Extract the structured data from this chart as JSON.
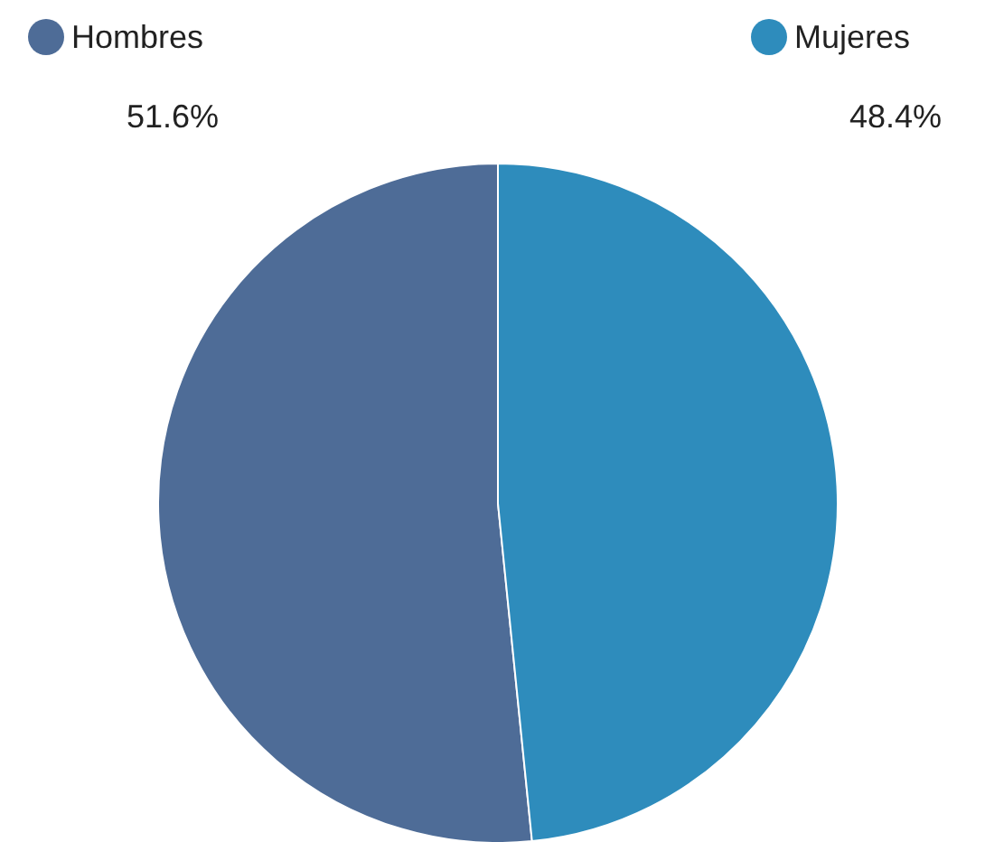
{
  "chart_data": {
    "type": "pie",
    "categories": [
      "Hombres",
      "Mujeres"
    ],
    "values": [
      51.6,
      48.4
    ],
    "colors": [
      "#4e6c97",
      "#2e8cbc"
    ],
    "legend": "top",
    "value_labels": [
      "51.6%",
      "48.4%"
    ]
  }
}
